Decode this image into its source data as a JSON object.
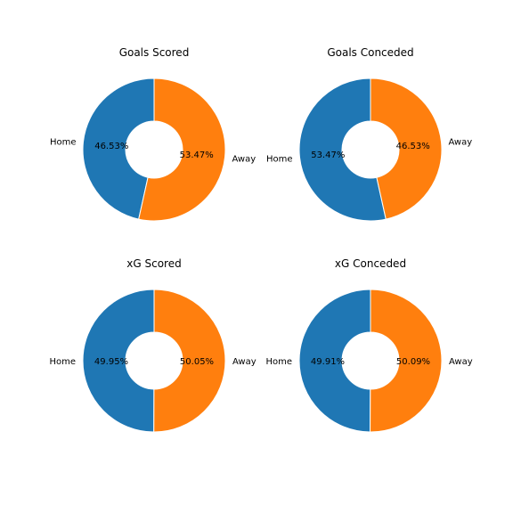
{
  "colors": {
    "home": "#1f77b4",
    "away": "#ff7f0e",
    "edge": "#ffffff"
  },
  "chart_data": [
    {
      "type": "pie",
      "variant": "donut",
      "title": "Goals Scored",
      "labels": [
        "Home",
        "Away"
      ],
      "values": [
        46.53,
        53.47
      ],
      "value_labels": [
        "46.53%",
        "53.47%"
      ]
    },
    {
      "type": "pie",
      "variant": "donut",
      "title": "Goals Conceded",
      "labels": [
        "Home",
        "Away"
      ],
      "values": [
        53.47,
        46.53
      ],
      "value_labels": [
        "53.47%",
        "46.53%"
      ]
    },
    {
      "type": "pie",
      "variant": "donut",
      "title": "xG Scored",
      "labels": [
        "Home",
        "Away"
      ],
      "values": [
        49.95,
        50.05
      ],
      "value_labels": [
        "49.95%",
        "50.05%"
      ]
    },
    {
      "type": "pie",
      "variant": "donut",
      "title": "xG Conceded",
      "labels": [
        "Home",
        "Away"
      ],
      "values": [
        49.91,
        50.09
      ],
      "value_labels": [
        "49.91%",
        "50.09%"
      ]
    }
  ]
}
